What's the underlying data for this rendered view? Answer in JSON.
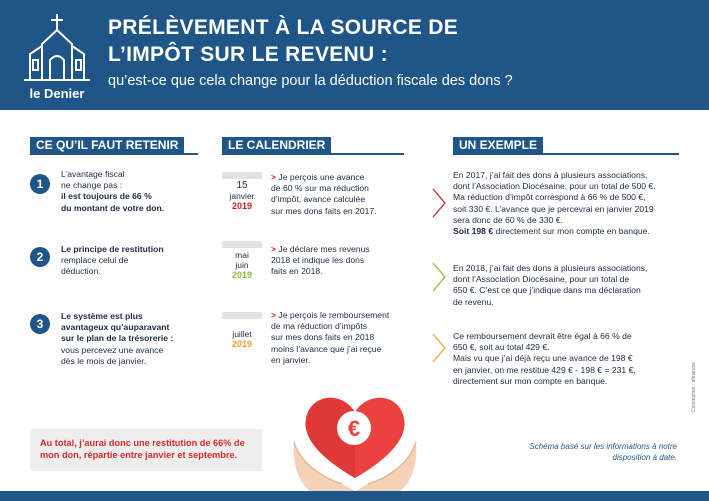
{
  "header": {
    "logo_text": "le Denier",
    "title_line1": "PRÉLÈVEMENT À LA SOURCE DE",
    "title_line2": "L’IMPÔT SUR LE REVENU :",
    "subtitle": "qu’est-ce que cela change pour la déduction fiscale des dons ?"
  },
  "sections": {
    "retenir": "CE QU’IL FAUT RETENIR",
    "calendrier": "LE CALENDRIER",
    "exemple": "UN EXEMPLE"
  },
  "retenir": [
    {
      "num": "1",
      "lines": [
        "L’avantage fiscal",
        "ne change pas :"
      ],
      "bold_lines": [
        "il est toujours de 66 %",
        "du montant de votre don."
      ]
    },
    {
      "num": "2",
      "bold_lines": [
        "Le principe de restitution"
      ],
      "lines": [
        "remplace celui de",
        "déduction."
      ]
    },
    {
      "num": "3",
      "bold_lines": [
        "Le système est plus",
        "avantageux qu’auparavant",
        "sur le plan de la trésorerie :"
      ],
      "lines": [
        "vous percevez une avance",
        "dès le mois de janvier."
      ]
    }
  ],
  "calendrier": [
    {
      "date_line1": "15",
      "date_line2": "janvier",
      "year": "2019",
      "accent": "#c8201e",
      "arrow": ">",
      "lines": [
        "Je perçois une avance",
        "de 60 % sur ma réduction",
        "d’impôt, avance calculée",
        "sur mes dons faits en 2017."
      ]
    },
    {
      "date_line1": "mai",
      "date_line2": "juin",
      "year": "2019",
      "accent": "#8db83b",
      "arrow": ">",
      "lines": [
        "Je déclare mes revenus",
        "2018 et indique les dons",
        "faits en 2018."
      ]
    },
    {
      "date_line1": "juillet",
      "date_line2": "",
      "year": "2019",
      "accent": "#f0a030",
      "arrow": ">",
      "lines": [
        "Je perçois le remboursement",
        "de ma réduction d’impôts",
        "sur mes dons faits en 2018",
        "moins l’avance que j’ai reçue",
        "en janvier."
      ]
    }
  ],
  "exemple": [
    {
      "color": "#c8201e",
      "lines": [
        "En 2017, j’ai fait des dons à plusieurs associations,",
        "dont l’Association Diocésaine, pour un total de 500 €.",
        "Ma réduction d’impôt correspond à 66 % de 500 €,",
        "soit 330 €. L’avance que je percevrai en janvier 2019",
        "sera donc de 60 % de 330 €."
      ],
      "bold_line": "Soit 198 €",
      "bold_rest": " directement sur mon compte en banque."
    },
    {
      "color": "#8db83b",
      "lines": [
        "En 2018, j’ai fait des dons à plusieurs associations,",
        "dont l’Association Diocésaine, pour un total de",
        "650 €. C’est ce que j’indique dans ma déclaration",
        "de revenu."
      ]
    },
    {
      "color": "#f0a030",
      "lines": [
        "Ce remboursement devrait être égal à 66 % de",
        "650 €, soit au total 429 €.",
        "Mais vu que j’ai déjà reçu une avance de 198 €",
        "en janvier, on me restitue 429 € - 198 € = 231 €,",
        "directement sur mon compte en banque."
      ]
    }
  ],
  "summary": "Au total, j’aurai donc une restitution de 66% de mon don, répartie entre janvier et septembre.",
  "note": "Schéma basé sur les informations à notre disposition à date.",
  "credit": "Conception : afeseuse",
  "heart_symbol": "€",
  "colors": {
    "brand": "#1f5587",
    "red": "#c8201e",
    "green": "#8db83b",
    "orange": "#f0a030"
  }
}
